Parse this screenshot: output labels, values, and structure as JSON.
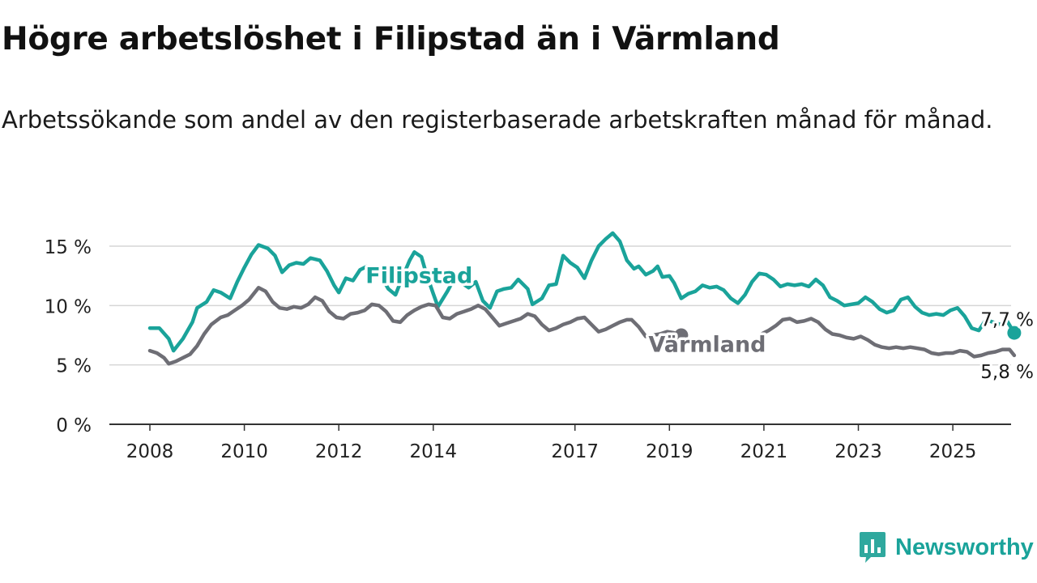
{
  "title": "Högre arbetslöshet i Filipstad än i Värmland",
  "subtitle": "Arbetssökande som andel av den registerbaserade arbetskraften månad för månad.",
  "brand": {
    "name": "Newsworthy",
    "icon": "newsworthy-logo-icon",
    "color": "#1aa39a"
  },
  "chart_data": {
    "type": "line",
    "title": "Högre arbetslöshet i Filipstad än i Värmland",
    "ylim": [
      0,
      15
    ],
    "y_ticks": [
      0,
      5,
      10,
      15
    ],
    "y_tick_labels": [
      "0 %",
      "5 %",
      "10 %",
      "15 %"
    ],
    "x_ticks": [
      2008,
      2010,
      2012,
      2014,
      2017,
      2019,
      2021,
      2023,
      2025
    ],
    "x_tick_labels": [
      "2008",
      "2010",
      "2012",
      "2014",
      "2017",
      "2019",
      "2021",
      "2023",
      "2025"
    ],
    "grid": true,
    "legend": "inline labels",
    "series": [
      {
        "name": "Filipstad",
        "color": "#1aa39a",
        "end_label": "7,7 %",
        "points": [
          [
            2008.0,
            8.1
          ],
          [
            2008.2,
            8.1
          ],
          [
            2008.4,
            7.2
          ],
          [
            2008.5,
            6.2
          ],
          [
            2008.7,
            7.2
          ],
          [
            2008.9,
            8.6
          ],
          [
            2009.0,
            9.8
          ],
          [
            2009.2,
            10.3
          ],
          [
            2009.35,
            11.3
          ],
          [
            2009.5,
            11.1
          ],
          [
            2009.7,
            10.6
          ],
          [
            2009.85,
            12.0
          ],
          [
            2010.0,
            13.2
          ],
          [
            2010.15,
            14.3
          ],
          [
            2010.3,
            15.1
          ],
          [
            2010.5,
            14.8
          ],
          [
            2010.65,
            14.2
          ],
          [
            2010.8,
            12.8
          ],
          [
            2010.95,
            13.4
          ],
          [
            2011.1,
            13.6
          ],
          [
            2011.25,
            13.5
          ],
          [
            2011.4,
            14.0
          ],
          [
            2011.6,
            13.8
          ],
          [
            2011.75,
            12.9
          ],
          [
            2011.9,
            11.7
          ],
          [
            2012.0,
            11.1
          ],
          [
            2012.15,
            12.3
          ],
          [
            2012.3,
            12.1
          ],
          [
            2012.45,
            13.0
          ],
          [
            2012.6,
            13.3
          ],
          [
            2012.75,
            13.1
          ],
          [
            2012.9,
            12.4
          ],
          [
            2013.05,
            11.4
          ],
          [
            2013.2,
            10.9
          ],
          [
            2013.35,
            12.4
          ],
          [
            2013.5,
            13.8
          ],
          [
            2013.6,
            14.5
          ],
          [
            2013.75,
            14.1
          ],
          [
            2013.85,
            12.7
          ],
          [
            2014.0,
            11.0
          ],
          [
            2014.1,
            9.9
          ],
          [
            2014.3,
            11.2
          ],
          [
            2014.45,
            12.3
          ],
          [
            2014.6,
            11.9
          ],
          [
            2014.75,
            11.5
          ],
          [
            2014.9,
            12.0
          ],
          [
            2015.05,
            10.4
          ],
          [
            2015.2,
            9.8
          ],
          [
            2015.35,
            11.2
          ],
          [
            2015.5,
            11.4
          ],
          [
            2015.65,
            11.5
          ],
          [
            2015.8,
            12.2
          ],
          [
            2016.0,
            11.4
          ],
          [
            2016.1,
            10.1
          ],
          [
            2016.3,
            10.6
          ],
          [
            2016.45,
            11.7
          ],
          [
            2016.6,
            11.8
          ],
          [
            2016.75,
            14.2
          ],
          [
            2016.9,
            13.6
          ],
          [
            2017.05,
            13.2
          ],
          [
            2017.2,
            12.3
          ],
          [
            2017.35,
            13.8
          ],
          [
            2017.5,
            15.0
          ],
          [
            2017.65,
            15.6
          ],
          [
            2017.8,
            16.1
          ],
          [
            2017.95,
            15.4
          ],
          [
            2018.1,
            13.8
          ],
          [
            2018.25,
            13.1
          ],
          [
            2018.35,
            13.3
          ],
          [
            2018.5,
            12.6
          ],
          [
            2018.65,
            12.9
          ],
          [
            2018.75,
            13.3
          ],
          [
            2018.85,
            12.4
          ],
          [
            2019.0,
            12.5
          ],
          [
            2019.1,
            11.9
          ],
          [
            2019.25,
            10.6
          ],
          [
            2019.4,
            11.0
          ],
          [
            2019.55,
            11.2
          ],
          [
            2019.7,
            11.7
          ],
          [
            2019.85,
            11.5
          ],
          [
            2020.0,
            11.6
          ],
          [
            2020.15,
            11.3
          ],
          [
            2020.3,
            10.6
          ],
          [
            2020.45,
            10.2
          ],
          [
            2020.6,
            10.9
          ],
          [
            2020.75,
            12.0
          ],
          [
            2020.9,
            12.7
          ],
          [
            2021.05,
            12.6
          ],
          [
            2021.2,
            12.2
          ],
          [
            2021.35,
            11.6
          ],
          [
            2021.5,
            11.8
          ],
          [
            2021.65,
            11.7
          ],
          [
            2021.8,
            11.8
          ],
          [
            2021.95,
            11.6
          ],
          [
            2022.1,
            12.2
          ],
          [
            2022.25,
            11.7
          ],
          [
            2022.4,
            10.7
          ],
          [
            2022.55,
            10.4
          ],
          [
            2022.7,
            10.0
          ],
          [
            2022.85,
            10.1
          ],
          [
            2023.0,
            10.2
          ],
          [
            2023.15,
            10.7
          ],
          [
            2023.3,
            10.3
          ],
          [
            2023.45,
            9.7
          ],
          [
            2023.6,
            9.4
          ],
          [
            2023.75,
            9.6
          ],
          [
            2023.9,
            10.5
          ],
          [
            2024.05,
            10.7
          ],
          [
            2024.2,
            9.9
          ],
          [
            2024.35,
            9.4
          ],
          [
            2024.5,
            9.2
          ],
          [
            2024.65,
            9.3
          ],
          [
            2024.8,
            9.2
          ],
          [
            2024.95,
            9.6
          ],
          [
            2025.1,
            9.8
          ],
          [
            2025.25,
            9.1
          ],
          [
            2025.4,
            8.1
          ],
          [
            2025.55,
            7.9
          ],
          [
            2025.7,
            8.8
          ],
          [
            2025.85,
            8.6
          ],
          [
            2026.0,
            8.4
          ],
          [
            2026.15,
            8.7
          ],
          [
            2026.3,
            7.7
          ]
        ]
      },
      {
        "name": "Värmland",
        "color": "#6e6e75",
        "end_label": "5,8 %",
        "points": [
          [
            2008.0,
            6.2
          ],
          [
            2008.15,
            6.0
          ],
          [
            2008.3,
            5.6
          ],
          [
            2008.4,
            5.1
          ],
          [
            2008.55,
            5.3
          ],
          [
            2008.7,
            5.6
          ],
          [
            2008.85,
            5.9
          ],
          [
            2009.0,
            6.6
          ],
          [
            2009.15,
            7.6
          ],
          [
            2009.3,
            8.4
          ],
          [
            2009.5,
            9.0
          ],
          [
            2009.65,
            9.2
          ],
          [
            2009.8,
            9.6
          ],
          [
            2009.95,
            10.0
          ],
          [
            2010.1,
            10.5
          ],
          [
            2010.3,
            11.5
          ],
          [
            2010.45,
            11.2
          ],
          [
            2010.6,
            10.3
          ],
          [
            2010.75,
            9.8
          ],
          [
            2010.9,
            9.7
          ],
          [
            2011.05,
            9.9
          ],
          [
            2011.2,
            9.8
          ],
          [
            2011.35,
            10.1
          ],
          [
            2011.5,
            10.7
          ],
          [
            2011.65,
            10.4
          ],
          [
            2011.8,
            9.5
          ],
          [
            2011.95,
            9.0
          ],
          [
            2012.1,
            8.9
          ],
          [
            2012.25,
            9.3
          ],
          [
            2012.4,
            9.4
          ],
          [
            2012.55,
            9.6
          ],
          [
            2012.7,
            10.1
          ],
          [
            2012.85,
            10.0
          ],
          [
            2013.0,
            9.5
          ],
          [
            2013.15,
            8.7
          ],
          [
            2013.3,
            8.6
          ],
          [
            2013.45,
            9.2
          ],
          [
            2013.6,
            9.6
          ],
          [
            2013.75,
            9.9
          ],
          [
            2013.9,
            10.1
          ],
          [
            2014.05,
            10.0
          ],
          [
            2014.2,
            9.0
          ],
          [
            2014.35,
            8.9
          ],
          [
            2014.5,
            9.3
          ],
          [
            2014.65,
            9.5
          ],
          [
            2014.8,
            9.7
          ],
          [
            2014.95,
            10.0
          ],
          [
            2015.1,
            9.7
          ],
          [
            2015.25,
            9.0
          ],
          [
            2015.4,
            8.3
          ],
          [
            2015.55,
            8.5
          ],
          [
            2015.7,
            8.7
          ],
          [
            2015.85,
            8.9
          ],
          [
            2016.0,
            9.3
          ],
          [
            2016.15,
            9.1
          ],
          [
            2016.3,
            8.4
          ],
          [
            2016.45,
            7.9
          ],
          [
            2016.6,
            8.1
          ],
          [
            2016.75,
            8.4
          ],
          [
            2016.9,
            8.6
          ],
          [
            2017.05,
            8.9
          ],
          [
            2017.2,
            9.0
          ],
          [
            2017.35,
            8.4
          ],
          [
            2017.5,
            7.8
          ],
          [
            2017.65,
            8.0
          ],
          [
            2017.8,
            8.3
          ],
          [
            2017.95,
            8.6
          ],
          [
            2018.1,
            8.8
          ],
          [
            2018.2,
            8.8
          ],
          [
            2018.35,
            8.2
          ],
          [
            2018.5,
            7.4
          ],
          [
            2018.65,
            7.5
          ],
          [
            2018.8,
            7.6
          ],
          [
            2018.95,
            7.8
          ],
          [
            2019.1,
            7.7
          ],
          [
            2019.25,
            7.5
          ]
        ]
      },
      {
        "name": "",
        "color": "#6e6e75",
        "points": [
          [
            2020.95,
            7.6
          ],
          [
            2021.1,
            7.9
          ],
          [
            2021.25,
            8.3
          ],
          [
            2021.4,
            8.8
          ],
          [
            2021.55,
            8.9
          ],
          [
            2021.7,
            8.6
          ],
          [
            2021.85,
            8.7
          ],
          [
            2022.0,
            8.9
          ],
          [
            2022.15,
            8.6
          ],
          [
            2022.3,
            8.0
          ],
          [
            2022.45,
            7.6
          ],
          [
            2022.6,
            7.5
          ],
          [
            2022.75,
            7.3
          ],
          [
            2022.9,
            7.2
          ],
          [
            2023.05,
            7.4
          ],
          [
            2023.2,
            7.1
          ],
          [
            2023.35,
            6.7
          ],
          [
            2023.5,
            6.5
          ],
          [
            2023.65,
            6.4
          ],
          [
            2023.8,
            6.5
          ],
          [
            2023.95,
            6.4
          ],
          [
            2024.1,
            6.5
          ],
          [
            2024.25,
            6.4
          ],
          [
            2024.4,
            6.3
          ],
          [
            2024.55,
            6.0
          ],
          [
            2024.7,
            5.9
          ],
          [
            2024.85,
            6.0
          ],
          [
            2025.0,
            6.0
          ],
          [
            2025.15,
            6.2
          ],
          [
            2025.3,
            6.1
          ],
          [
            2025.45,
            5.7
          ],
          [
            2025.6,
            5.8
          ],
          [
            2025.75,
            6.0
          ],
          [
            2025.9,
            6.1
          ],
          [
            2026.05,
            6.3
          ],
          [
            2026.2,
            6.3
          ],
          [
            2026.3,
            5.8
          ]
        ]
      }
    ],
    "annotations": [
      {
        "text": "Filipstad",
        "x": 2013.7,
        "y": 12.5,
        "color": "#1aa39a",
        "data_name": "series-label-filipstad"
      },
      {
        "text": "Värmland",
        "x": 2019.8,
        "y": 6.7,
        "color": "#6e6e75",
        "data_name": "series-label-varmland"
      },
      {
        "text": "7,7 %",
        "x": 2026.15,
        "y": 8.9,
        "color": "#1a1a1a",
        "data_name": "end-label-filipstad"
      },
      {
        "text": "5,8 %",
        "x": 2026.15,
        "y": 4.5,
        "color": "#1a1a1a",
        "data_name": "end-label-varmland"
      }
    ]
  }
}
